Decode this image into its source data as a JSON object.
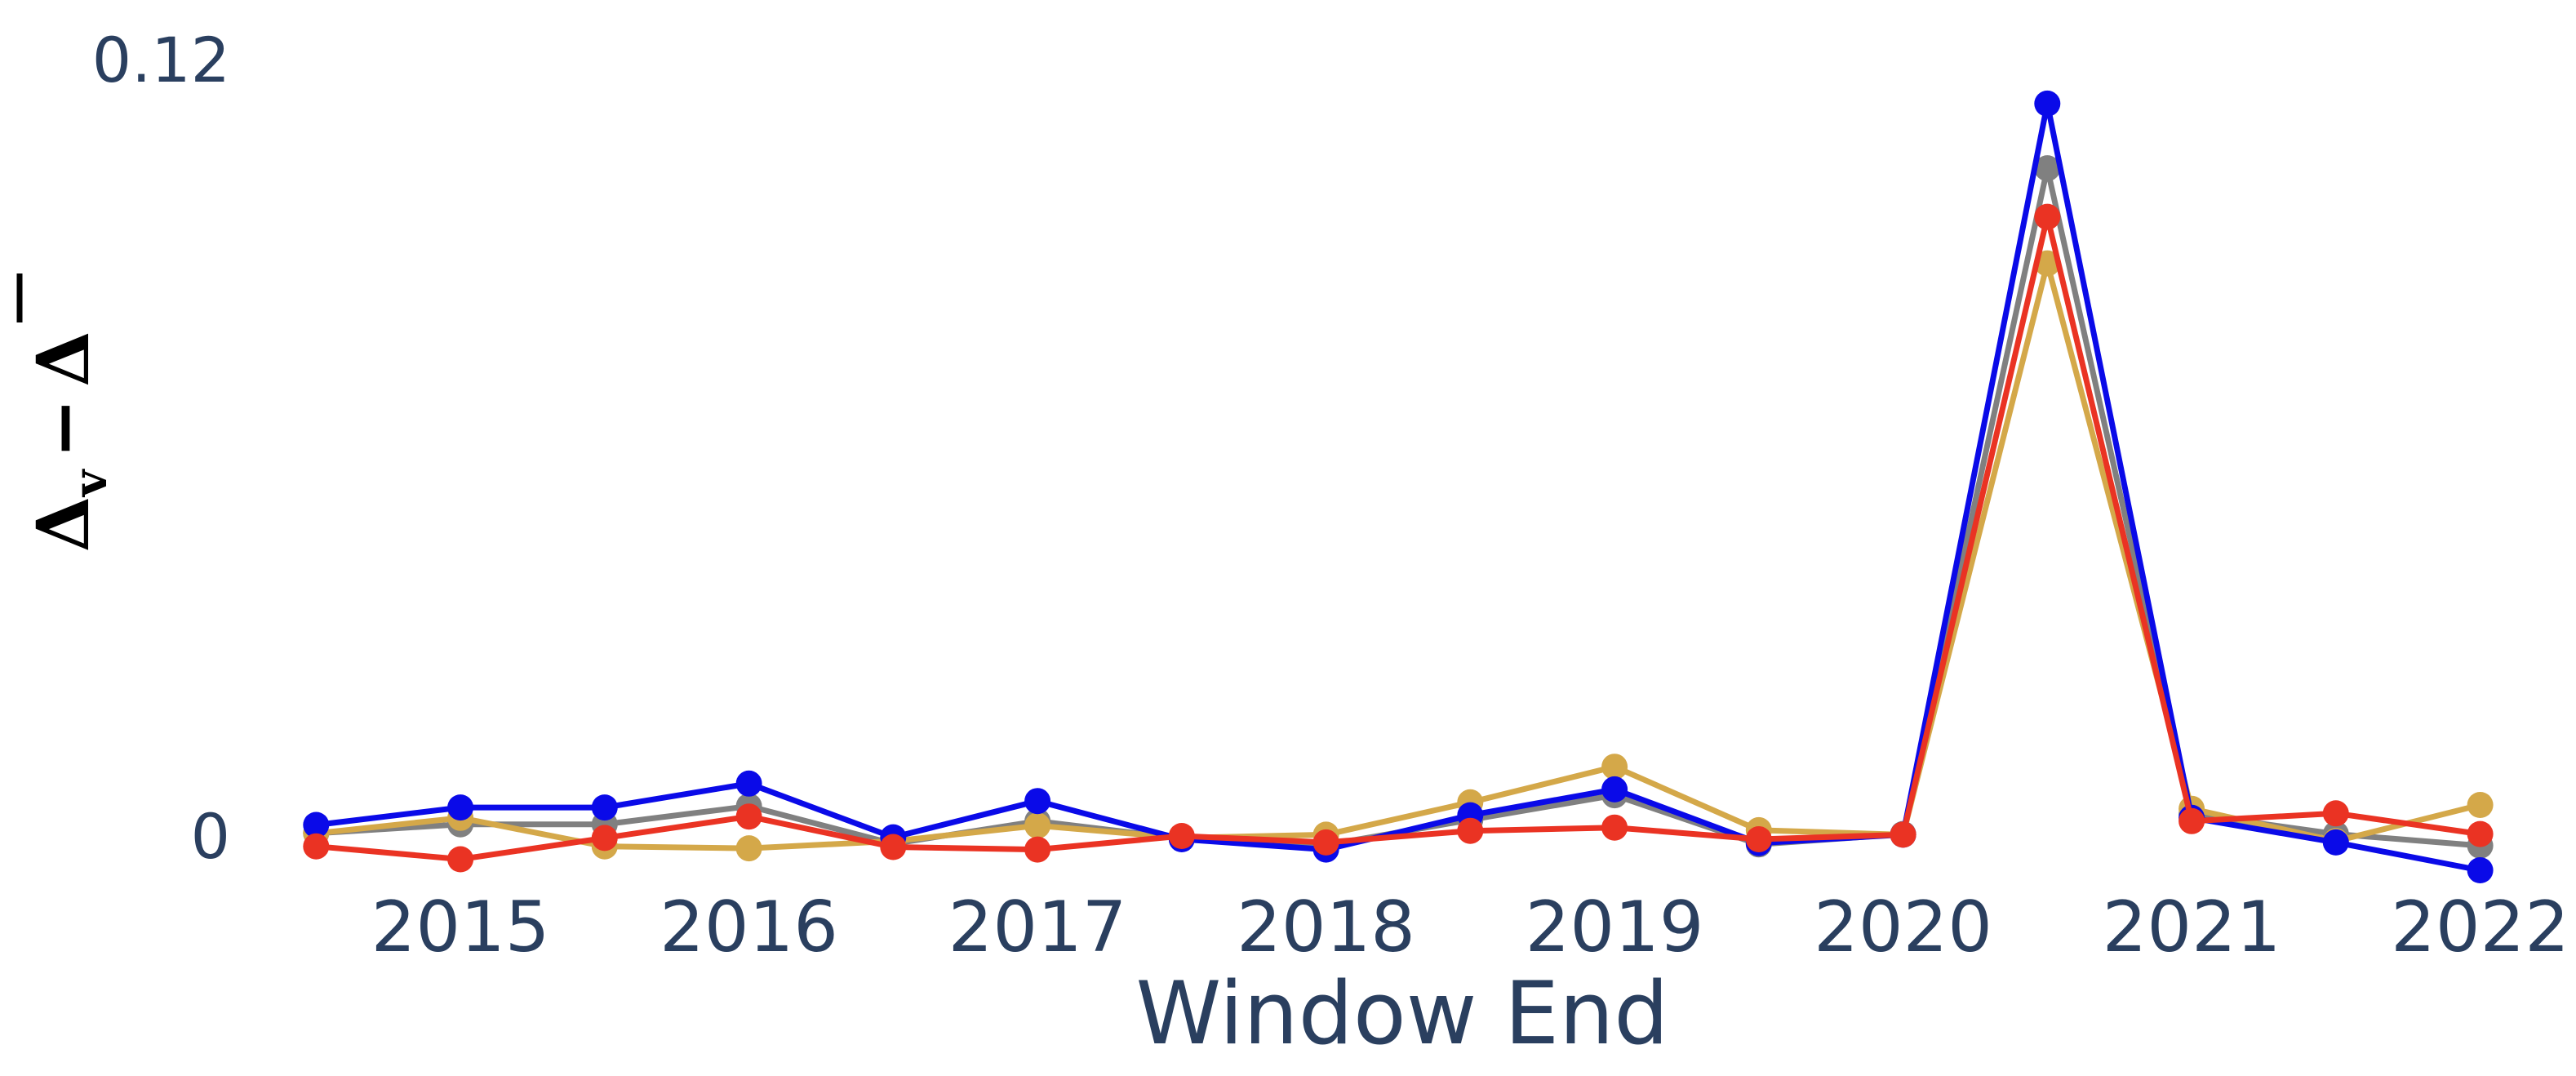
{
  "chart_data": {
    "type": "line",
    "xlabel": "Window End",
    "ylabel": "Δv − Δ̄",
    "ylabel_parts": {
      "main": "Δ",
      "sub": "v",
      "minus": "−",
      "bar": "Δ"
    },
    "x_tick_labels": [
      "2015",
      "2016",
      "2017",
      "2018",
      "2019",
      "2020",
      "2021",
      "2022"
    ],
    "x_tick_values": [
      2015,
      2016,
      2017,
      2018,
      2019,
      2020,
      2021,
      2022
    ],
    "y_tick_labels": [
      "0",
      "0.12"
    ],
    "y_tick_values": [
      0,
      0.12
    ],
    "xlim": [
      2014.4,
      2022.4
    ],
    "ylim": [
      -0.006,
      0.12
    ],
    "grid": false,
    "legend": "none",
    "x": [
      2014.5,
      2015.0,
      2015.5,
      2016.0,
      2016.5,
      2017.0,
      2017.5,
      2018.0,
      2018.5,
      2019.0,
      2019.5,
      2020.0,
      2020.5,
      2021.0,
      2021.5,
      2022.0
    ],
    "series": [
      {
        "color": "#808080",
        "values": [
          0.0004,
          0.0018,
          0.0018,
          0.0046,
          -0.0012,
          0.0023,
          -0.0004,
          -0.0014,
          0.0025,
          0.0063,
          -0.0013,
          0.0003,
          0.1032,
          0.0034,
          0.0003,
          -0.0015
        ]
      },
      {
        "color": "#d4a849",
        "values": [
          0.0004,
          0.0028,
          -0.0016,
          -0.0019,
          -0.0008,
          0.0016,
          -0.0003,
          0.0002,
          0.0052,
          0.0107,
          0.0009,
          0.0002,
          0.0885,
          0.0042,
          -0.0008,
          0.0048
        ]
      },
      {
        "color": "#0a0ae8",
        "values": [
          0.0017,
          0.0044,
          0.0044,
          0.0081,
          -0.0002,
          0.0054,
          -0.0005,
          -0.0021,
          0.0032,
          0.0072,
          -0.0011,
          0.0002,
          0.1132,
          0.0028,
          -0.001,
          -0.0053
        ]
      },
      {
        "color": "#ea3323",
        "values": [
          -0.0016,
          -0.0036,
          -0.0003,
          0.003,
          -0.0017,
          -0.0021,
          0.0,
          -0.001,
          0.0008,
          0.0013,
          -0.0005,
          0.0002,
          0.0957,
          0.0023,
          0.0035,
          0.0003
        ]
      }
    ]
  }
}
